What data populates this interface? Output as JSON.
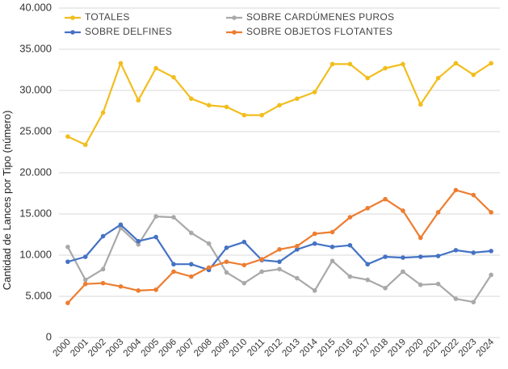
{
  "chart_data": {
    "type": "line",
    "title": "",
    "xlabel": "",
    "ylabel": "Cantidad de Lances por Tipo (número)",
    "ylim": [
      0,
      40000
    ],
    "yticks": [
      0,
      5000,
      10000,
      15000,
      20000,
      25000,
      30000,
      35000,
      40000
    ],
    "ytick_labels": [
      "0",
      "5.000",
      "10.000",
      "15.000",
      "20.000",
      "25.000",
      "30.000",
      "35.000",
      "40.000"
    ],
    "grid": true,
    "legend_position": "top",
    "categories": [
      "2000",
      "2001",
      "2002",
      "2003",
      "2004",
      "2005",
      "2006",
      "2007",
      "2008",
      "2009",
      "2010",
      "2011",
      "2012",
      "2013",
      "2014",
      "2015",
      "2016",
      "2017",
      "2018",
      "2019",
      "2020",
      "2021",
      "2022",
      "2023",
      "2024"
    ],
    "series": [
      {
        "name": "TOTALES",
        "color": "#F2BE1E",
        "values": [
          24400,
          23400,
          27300,
          33300,
          28800,
          32700,
          31600,
          29000,
          28200,
          28000,
          27000,
          27000,
          28200,
          29000,
          29800,
          33200,
          33200,
          31500,
          32700,
          33200,
          28300,
          31500,
          33300,
          31900,
          33300
        ]
      },
      {
        "name": "SOBRE CARDÚMENES PUROS",
        "color": "#A9A9A9",
        "values": [
          11000,
          7000,
          8300,
          13300,
          11300,
          14700,
          14600,
          12700,
          11400,
          7900,
          6600,
          8000,
          8300,
          7200,
          5700,
          9300,
          7400,
          7000,
          6000,
          8000,
          6400,
          6500,
          4700,
          4300,
          7600
        ]
      },
      {
        "name": "SOBRE DELFINES",
        "color": "#4472C4",
        "values": [
          9200,
          9800,
          12300,
          13700,
          11700,
          12200,
          8900,
          8900,
          8200,
          10900,
          11600,
          9400,
          9200,
          10700,
          11400,
          11000,
          11200,
          8900,
          9800,
          9700,
          9800,
          9900,
          10600,
          10300,
          10500
        ]
      },
      {
        "name": "SOBRE OBJETOS FLOTANTES",
        "color": "#ED7D31",
        "values": [
          4200,
          6500,
          6600,
          6200,
          5700,
          5800,
          8000,
          7400,
          8500,
          9200,
          8800,
          9500,
          10700,
          11100,
          12600,
          12800,
          14600,
          15700,
          16800,
          15400,
          12100,
          15200,
          17900,
          17300,
          15200
        ]
      }
    ]
  }
}
